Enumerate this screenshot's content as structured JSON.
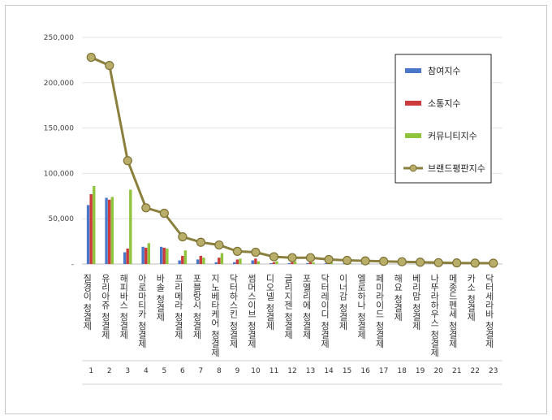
{
  "chart_data": {
    "type": "bar",
    "y_ticks": [
      "-",
      "50,000",
      "100,000",
      "150,000",
      "200,000",
      "250,000"
    ],
    "ylim": [
      0,
      250000
    ],
    "categories": [
      "질경이 청결제",
      "유리아쥬 청결제",
      "해피바스 청결제",
      "아로마티카 청결제",
      "바솔 청결제",
      "프리메라 청결제",
      "포블랑시 청결제",
      "지노베타케어 청결제",
      "닥터하스킨 청결제",
      "썸머스이브 청결제",
      "디오넬 청결제",
      "글리지젠 청결제",
      "포엘리에 청결제",
      "닥터레이디 청결제",
      "이너감 청결제",
      "엘로하나 청결제",
      "페미라이드 청결제",
      "해요 청결제",
      "베리맘 청결제",
      "나뚜라하우스 청결제",
      "메종드펜세 청결제",
      "카소 청결제",
      "닥터세라바 청결제"
    ],
    "index_labels": [
      "1",
      "2",
      "3",
      "4",
      "5",
      "6",
      "7",
      "8",
      "9",
      "10",
      "11",
      "12",
      "13",
      "14",
      "15",
      "16",
      "17",
      "18",
      "19",
      "20",
      "21",
      "22",
      "23"
    ],
    "series": [
      {
        "name": "참여지수",
        "color": "#4a77c8",
        "values": [
          65000,
          73000,
          13000,
          19000,
          19000,
          4000,
          5000,
          2000,
          2000,
          4000,
          1000,
          1000,
          1000,
          800,
          600,
          500,
          400,
          300,
          300,
          300,
          200,
          200,
          200
        ]
      },
      {
        "name": "소통지수",
        "color": "#cc3b3b",
        "values": [
          77000,
          71000,
          17000,
          18000,
          18000,
          9000,
          9000,
          7000,
          5000,
          6000,
          2000,
          2000,
          2000,
          800,
          600,
          500,
          400,
          300,
          300,
          300,
          200,
          200,
          200
        ]
      },
      {
        "name": "커뮤니티지수",
        "color": "#8fc43c",
        "values": [
          86000,
          74000,
          82000,
          23000,
          17000,
          15000,
          7000,
          12000,
          6000,
          3000,
          3000,
          3000,
          2000,
          1500,
          1200,
          900,
          800,
          600,
          500,
          400,
          300,
          300,
          300
        ]
      },
      {
        "name": "브랜드평판지수",
        "color": "#8a7f3c",
        "type": "line",
        "values": [
          228000,
          219000,
          114000,
          62000,
          56000,
          30000,
          24000,
          21000,
          14000,
          13000,
          8000,
          7000,
          7000,
          5000,
          4000,
          3500,
          3000,
          2500,
          2000,
          1500,
          1200,
          1000,
          900
        ]
      }
    ],
    "legend": "top-right",
    "grid": true
  }
}
